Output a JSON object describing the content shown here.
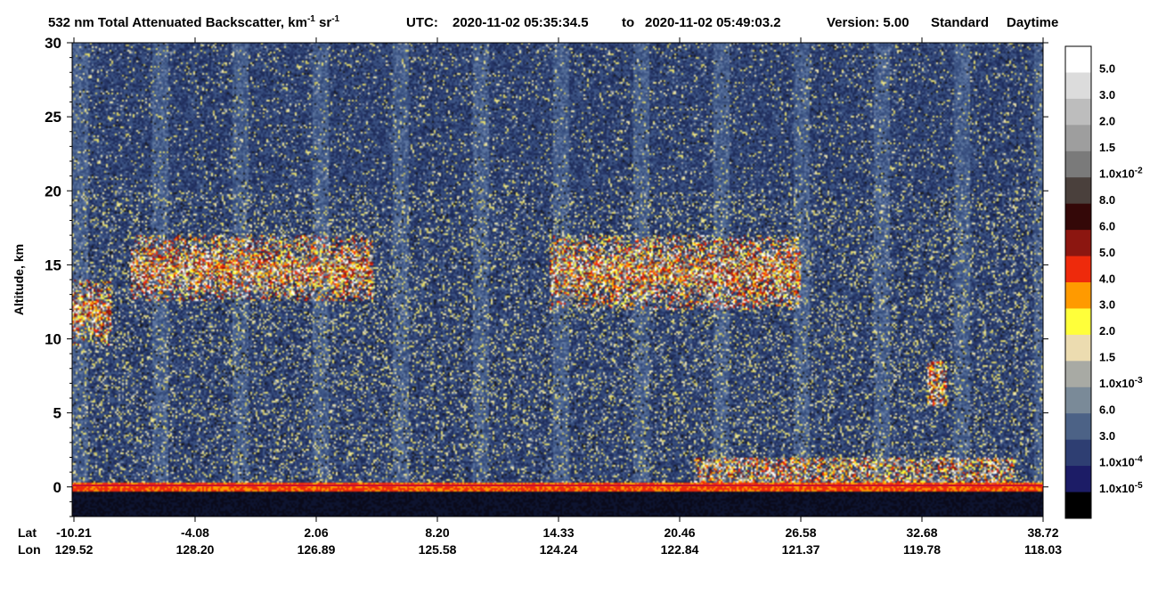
{
  "title": {
    "prefix": "532 nm Total Attenuated Backscatter, km",
    "unit_exp_1": "-1",
    "unit_mid": " sr",
    "unit_exp_2": "-1",
    "utc_label": "UTC:",
    "start": "2020-11-02 05:35:34.5",
    "to": "to",
    "end": "2020-11-02 05:49:03.2",
    "version": "Version: 5.00",
    "product": "Standard",
    "daytime": "Daytime"
  },
  "chart_data": {
    "type": "heatmap",
    "ylabel": "Altitude, km",
    "ylim": [
      -2,
      30
    ],
    "yticks": [
      0,
      5,
      10,
      15,
      20,
      25,
      30
    ],
    "x_row_labels": [
      "Lat",
      "Lon"
    ],
    "x_ticks": [
      {
        "lat": "-10.21",
        "lon": "129.52"
      },
      {
        "lat": "-4.08",
        "lon": "128.20"
      },
      {
        "lat": "2.06",
        "lon": "126.89"
      },
      {
        "lat": "8.20",
        "lon": "125.58"
      },
      {
        "lat": "14.33",
        "lon": "124.24"
      },
      {
        "lat": "20.46",
        "lon": "122.84"
      },
      {
        "lat": "26.58",
        "lon": "121.37"
      },
      {
        "lat": "32.68",
        "lon": "119.78"
      },
      {
        "lat": "38.72",
        "lon": "118.03"
      }
    ],
    "colorbar": [
      {
        "label": "5.0",
        "mant": "5.0",
        "exp": "",
        "color": "#ffffff"
      },
      {
        "label": "3.0",
        "mant": "3.0",
        "exp": "",
        "color": "#dcdcdc"
      },
      {
        "label": "2.0",
        "mant": "2.0",
        "exp": "",
        "color": "#bdbdbd"
      },
      {
        "label": "1.5",
        "mant": "1.5",
        "exp": "",
        "color": "#9e9e9e"
      },
      {
        "label": "1.0x10-2",
        "mant": "1.0x10",
        "exp": "-2",
        "color": "#7a7a7a"
      },
      {
        "label": "8.0",
        "mant": "8.0",
        "exp": "",
        "color": "#4a403c"
      },
      {
        "label": "6.0",
        "mant": "6.0",
        "exp": "",
        "color": "#340808"
      },
      {
        "label": "5.0",
        "mant": "5.0",
        "exp": "",
        "color": "#8c1610"
      },
      {
        "label": "4.0",
        "mant": "4.0",
        "exp": "",
        "color": "#ee2a0c"
      },
      {
        "label": "3.0",
        "mant": "3.0",
        "exp": "",
        "color": "#ff9a00"
      },
      {
        "label": "2.0",
        "mant": "2.0",
        "exp": "",
        "color": "#ffff3a"
      },
      {
        "label": "1.5",
        "mant": "1.5",
        "exp": "",
        "color": "#ecdcb0"
      },
      {
        "label": "1.0x10-3",
        "mant": "1.0x10",
        "exp": "-3",
        "color": "#a8aaa4"
      },
      {
        "label": "6.0",
        "mant": "6.0",
        "exp": "",
        "color": "#7a8a98"
      },
      {
        "label": "3.0",
        "mant": "3.0",
        "exp": "",
        "color": "#4c6286"
      },
      {
        "label": "1.0x10-4",
        "mant": "1.0x10",
        "exp": "-4",
        "color": "#2e3e72"
      },
      {
        "label": "1.0x10-5",
        "mant": "1.0x10",
        "exp": "-5",
        "color": "#1c1c66"
      },
      {
        "label": "",
        "mant": "",
        "exp": "",
        "color": "#000000"
      }
    ],
    "features": {
      "background": [
        "#1e2c58",
        "#28386a",
        "#344a7a",
        "#3e5686",
        "#4c6690",
        "#5c74a0",
        "#0e1430",
        "#0a0a1a"
      ],
      "noise": [
        "#c8c060",
        "#9aa0a8",
        "#e8e070",
        "#6e84a6",
        "#f0e8b0",
        "#1a1a1a"
      ],
      "cloud": [
        "#5a5654",
        "#8c8a88",
        "#ffffff",
        "#b8b4b0",
        "#ee2a0c",
        "#ff9a00",
        "#8c1610",
        "#ffff3a"
      ]
    }
  }
}
